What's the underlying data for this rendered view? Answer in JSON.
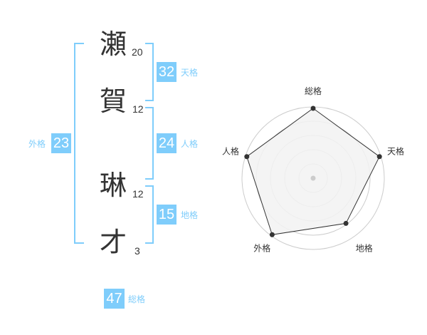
{
  "name_chars": [
    {
      "char": "瀬",
      "strokes": "20"
    },
    {
      "char": "賀",
      "strokes": "12"
    },
    {
      "char": "琳",
      "strokes": "12"
    },
    {
      "char": "才",
      "strokes": "3"
    }
  ],
  "kakusu": {
    "tenkaku": {
      "label": "天格",
      "value": "32"
    },
    "jinkaku": {
      "label": "人格",
      "value": "24"
    },
    "chikaku": {
      "label": "地格",
      "value": "15"
    },
    "gaikaku": {
      "label": "外格",
      "value": "23"
    },
    "soukaku": {
      "label": "総格",
      "value": "47"
    }
  },
  "colors": {
    "accent": "#7fcdfb",
    "polygon_fill": "#f2f2f2",
    "polygon_stroke": "#333333",
    "ring": "#cccccc"
  },
  "chart_data": {
    "type": "radar",
    "axes": [
      "総格",
      "天格",
      "地格",
      "外格",
      "人格"
    ],
    "values": [
      5,
      5,
      4,
      5,
      5
    ],
    "range": [
      0,
      5
    ],
    "rings": 5
  }
}
